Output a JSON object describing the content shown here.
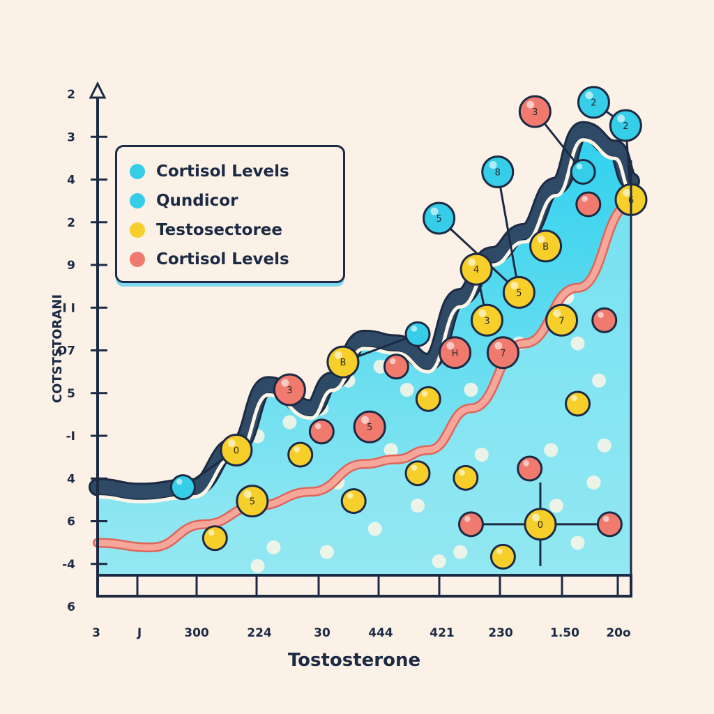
{
  "chart_data": {
    "type": "area",
    "title": "",
    "xlabel": "Tostosterone",
    "ylabel": "COTSTSTORANI",
    "x_tick_labels": [
      "3",
      "J",
      "300",
      "224",
      "30",
      "444",
      "421",
      "230",
      "1.50",
      "20o"
    ],
    "y_tick_labels": [
      "2",
      "3",
      "4",
      "2",
      "9",
      "I I",
      "O7",
      "5",
      "-I",
      "4",
      "6",
      "-4",
      "6"
    ],
    "grid": false,
    "legend_position": "top-left",
    "legend": [
      {
        "label": "Cortisol Levels",
        "color": "#36cde8"
      },
      {
        "label": "Qundicor",
        "color": "#36cde8"
      },
      {
        "label": "Testosectoree",
        "color": "#f7cf2a"
      },
      {
        "label": "Cortisol Levels",
        "color": "#f07a6e"
      }
    ],
    "series": [
      {
        "name": "Upper band (dark outline)",
        "color": "#2e4a66",
        "x": [
          0,
          0.08,
          0.18,
          0.26,
          0.32,
          0.4,
          0.44,
          0.5,
          0.56,
          0.62,
          0.68,
          0.74,
          0.8,
          0.86,
          0.91,
          0.97,
          1.0
        ],
        "y": [
          0.19,
          0.18,
          0.19,
          0.28,
          0.41,
          0.36,
          0.42,
          0.51,
          0.5,
          0.46,
          0.6,
          0.69,
          0.74,
          0.84,
          0.96,
          0.92,
          0.85
        ]
      },
      {
        "name": "Lower band (salmon line)",
        "color": "#f08c80",
        "x": [
          0,
          0.1,
          0.2,
          0.3,
          0.4,
          0.5,
          0.56,
          0.62,
          0.7,
          0.8,
          0.9,
          1.0
        ],
        "y": [
          0.07,
          0.06,
          0.11,
          0.15,
          0.18,
          0.24,
          0.25,
          0.27,
          0.36,
          0.5,
          0.62,
          0.8
        ]
      }
    ],
    "markers": [
      {
        "color": "cyan",
        "label": "2",
        "x": 0.93,
        "y": 1.02
      },
      {
        "color": "cyan",
        "label": "2",
        "x": 0.99,
        "y": 0.97
      },
      {
        "color": "salmon",
        "label": "3",
        "x": 0.82,
        "y": 1.0
      },
      {
        "color": "cyan",
        "label": "8",
        "x": 0.75,
        "y": 0.87
      },
      {
        "color": "cyan",
        "label": "",
        "x": 0.91,
        "y": 0.87
      },
      {
        "color": "yellow",
        "label": "6",
        "x": 1.0,
        "y": 0.81
      },
      {
        "color": "cyan",
        "label": "5",
        "x": 0.64,
        "y": 0.77
      },
      {
        "color": "yellow",
        "label": "B",
        "x": 0.84,
        "y": 0.71
      },
      {
        "color": "yellow",
        "label": "4",
        "x": 0.71,
        "y": 0.66
      },
      {
        "color": "yellow",
        "label": "5",
        "x": 0.79,
        "y": 0.61
      },
      {
        "color": "yellow",
        "label": "3",
        "x": 0.73,
        "y": 0.55
      },
      {
        "color": "yellow",
        "label": "7",
        "x": 0.87,
        "y": 0.55
      },
      {
        "color": "cyan",
        "label": "",
        "x": 0.6,
        "y": 0.52
      },
      {
        "color": "yellow",
        "label": "B",
        "x": 0.46,
        "y": 0.46
      },
      {
        "color": "salmon",
        "label": "H",
        "x": 0.67,
        "y": 0.48
      },
      {
        "color": "salmon",
        "label": "7",
        "x": 0.76,
        "y": 0.48
      },
      {
        "color": "salmon",
        "label": "",
        "x": 0.56,
        "y": 0.45
      },
      {
        "color": "salmon",
        "label": "3",
        "x": 0.36,
        "y": 0.4
      },
      {
        "color": "yellow",
        "label": "",
        "x": 0.62,
        "y": 0.38
      },
      {
        "color": "salmon",
        "label": "5",
        "x": 0.51,
        "y": 0.32
      },
      {
        "color": "salmon",
        "label": "",
        "x": 0.42,
        "y": 0.31
      },
      {
        "color": "yellow",
        "label": "0",
        "x": 0.26,
        "y": 0.27
      },
      {
        "color": "yellow",
        "label": "",
        "x": 0.38,
        "y": 0.26
      },
      {
        "color": "yellow",
        "label": "5",
        "x": 0.29,
        "y": 0.16
      },
      {
        "color": "cyan",
        "label": "",
        "x": 0.16,
        "y": 0.19
      },
      {
        "color": "yellow",
        "label": "",
        "x": 0.6,
        "y": 0.22
      },
      {
        "color": "yellow",
        "label": "",
        "x": 0.69,
        "y": 0.21
      },
      {
        "color": "yellow",
        "label": "",
        "x": 0.48,
        "y": 0.16
      },
      {
        "color": "yellow",
        "label": "",
        "x": 0.22,
        "y": 0.08
      },
      {
        "color": "salmon",
        "label": "",
        "x": 0.81,
        "y": 0.23
      },
      {
        "color": "salmon",
        "label": "",
        "x": 0.7,
        "y": 0.11
      },
      {
        "color": "yellow",
        "label": "0",
        "x": 0.83,
        "y": 0.11
      },
      {
        "color": "salmon",
        "label": "",
        "x": 0.96,
        "y": 0.11
      },
      {
        "color": "yellow",
        "label": "",
        "x": 0.76,
        "y": 0.04
      },
      {
        "color": "yellow",
        "label": "",
        "x": 0.9,
        "y": 0.37
      },
      {
        "color": "salmon",
        "label": "",
        "x": 0.92,
        "y": 0.8
      },
      {
        "color": "salmon",
        "label": "",
        "x": 0.95,
        "y": 0.55
      }
    ],
    "connectors": [
      [
        0,
        1
      ],
      [
        1,
        5
      ],
      [
        2,
        4
      ],
      [
        3,
        9
      ],
      [
        6,
        9
      ],
      [
        8,
        10
      ],
      [
        12,
        13
      ],
      [
        21,
        24
      ],
      [
        30,
        31
      ],
      [
        31,
        32
      ]
    ]
  },
  "colors": {
    "background": "#fbf1e6",
    "axis": "#1c2a44",
    "area_fill": "#36d2ef",
    "area_fill_light": "#8fe7f2",
    "dark_band": "#2e4a66",
    "salmon": "#f07a6e",
    "yellow": "#f7cf2a",
    "cyan": "#36cde8"
  }
}
